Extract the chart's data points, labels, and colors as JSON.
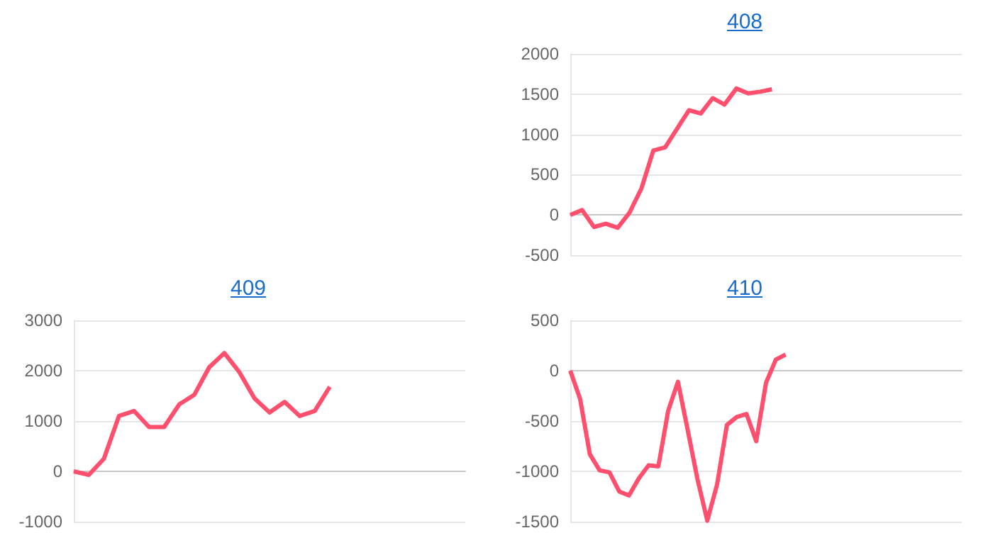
{
  "chart_data": [
    {
      "type": "line",
      "title": "408",
      "categories": [
        null,
        null,
        null,
        null,
        null,
        null,
        null,
        null,
        null,
        null,
        null,
        null,
        null,
        null,
        null,
        null,
        null,
        null,
        null,
        null,
        null,
        null,
        null,
        null,
        null,
        null,
        null,
        null,
        null,
        null,
        null,
        null,
        null,
        null
      ],
      "values": [
        0,
        60,
        -150,
        -110,
        -160,
        30,
        330,
        800,
        840,
        1070,
        1300,
        1260,
        1450,
        1370,
        1570,
        1510,
        1530,
        1560,
        null,
        null,
        null,
        null,
        null,
        null,
        null,
        null,
        null,
        null,
        null,
        null,
        null,
        null,
        null,
        null
      ],
      "color": "#ff4f6e",
      "ylim": [
        -500,
        2000
      ],
      "yticks": [
        -500,
        0,
        500,
        1000,
        1500,
        2000
      ],
      "grid": "y",
      "tick_labels": "y"
    },
    {
      "type": "line",
      "title": "409",
      "categories": [
        null,
        null,
        null,
        null,
        null,
        null,
        null,
        null,
        null,
        null,
        null,
        null,
        null,
        null,
        null,
        null,
        null,
        null,
        null,
        null,
        null,
        null,
        null,
        null,
        null,
        null,
        null
      ],
      "values": [
        0,
        -70,
        250,
        1100,
        1200,
        880,
        880,
        1330,
        1520,
        2070,
        2350,
        1970,
        1450,
        1170,
        1380,
        1100,
        1200,
        1680,
        null,
        null,
        null,
        null,
        null,
        null,
        null,
        null,
        null
      ],
      "color": "#ff4f6e",
      "ylim": [
        -1000,
        3000
      ],
      "yticks": [
        -1000,
        0,
        1000,
        2000,
        3000
      ],
      "grid": "y",
      "tick_labels": "y"
    },
    {
      "type": "line",
      "title": "410",
      "categories": [
        null,
        null,
        null,
        null,
        null,
        null,
        null,
        null,
        null,
        null,
        null,
        null,
        null,
        null,
        null,
        null,
        null,
        null,
        null,
        null,
        null,
        null,
        null,
        null,
        null,
        null,
        null,
        null,
        null,
        null,
        null,
        null,
        null,
        null,
        null,
        null,
        null,
        null,
        null,
        null,
        null
      ],
      "values": [
        0,
        -280,
        -830,
        -990,
        -1010,
        -1200,
        -1240,
        -1070,
        -940,
        -950,
        -400,
        -110,
        -590,
        -1080,
        -1490,
        -1130,
        -540,
        -460,
        -430,
        -700,
        -120,
        110,
        160,
        null,
        null,
        null,
        null,
        null,
        null,
        null,
        null,
        null,
        null,
        null,
        null,
        null,
        null,
        null,
        null,
        null,
        null
      ],
      "color": "#ff4f6e",
      "ylim": [
        -1500,
        500
      ],
      "yticks": [
        -1500,
        -1000,
        -500,
        0,
        500
      ],
      "grid": "y",
      "tick_labels": "y"
    }
  ]
}
